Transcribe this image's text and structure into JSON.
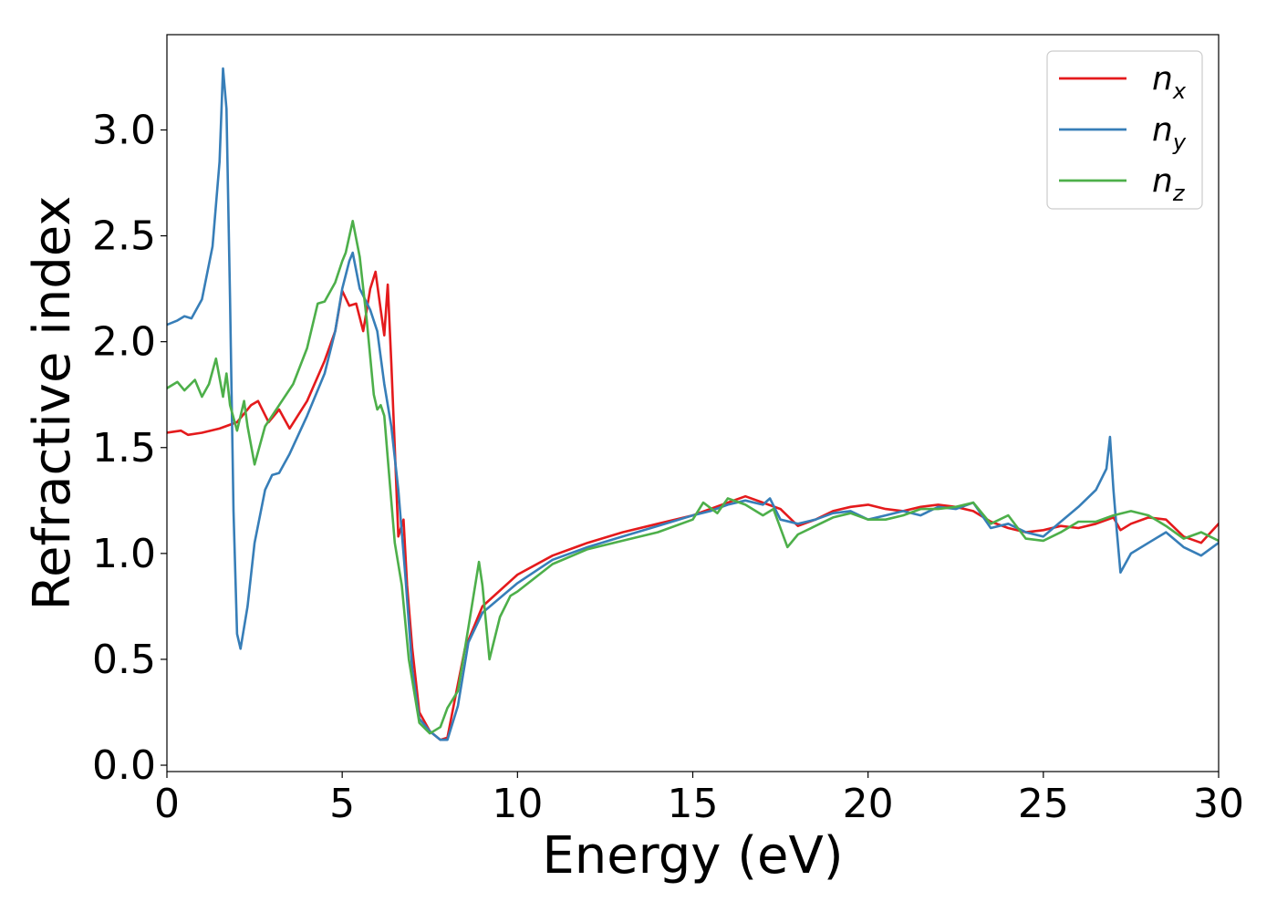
{
  "chart_data": {
    "type": "line",
    "title": "",
    "xlabel": "Energy (eV)",
    "ylabel": "Refractive index",
    "xlim": [
      0,
      30
    ],
    "ylim": [
      -0.03,
      3.45
    ],
    "xticks": [
      0,
      5,
      10,
      15,
      20,
      25,
      30
    ],
    "yticks": [
      0.0,
      0.5,
      1.0,
      1.5,
      2.0,
      2.5,
      3.0
    ],
    "xtick_labels": [
      "0",
      "5",
      "10",
      "15",
      "20",
      "25",
      "30"
    ],
    "ytick_labels": [
      "0.0",
      "0.5",
      "1.0",
      "1.5",
      "2.0",
      "2.5",
      "3.0"
    ],
    "grid": false,
    "legend_position": "top-right",
    "series": [
      {
        "name": "n",
        "subscript": "x",
        "color": "#e41a1c",
        "x": [
          0,
          0.4,
          0.6,
          1,
          1.5,
          2,
          2.4,
          2.6,
          2.9,
          3.2,
          3.5,
          4,
          4.5,
          4.8,
          5.0,
          5.2,
          5.4,
          5.6,
          5.8,
          5.95,
          6.1,
          6.2,
          6.3,
          6.4,
          6.5,
          6.6,
          6.75,
          6.85,
          7.0,
          7.2,
          7.5,
          7.8,
          8.0,
          8.2,
          8.5,
          9,
          10,
          11,
          12,
          13,
          14,
          15,
          15.5,
          16,
          16.5,
          17,
          17.5,
          18,
          18.5,
          19,
          19.5,
          20,
          20.5,
          21,
          21.5,
          22,
          22.5,
          23,
          23.5,
          24,
          24.5,
          25,
          25.5,
          26,
          26.5,
          27,
          27.2,
          27.5,
          28,
          28.5,
          29,
          29.5,
          30
        ],
        "y": [
          1.57,
          1.58,
          1.56,
          1.57,
          1.59,
          1.62,
          1.7,
          1.72,
          1.62,
          1.68,
          1.59,
          1.72,
          1.91,
          2.05,
          2.24,
          2.17,
          2.18,
          2.05,
          2.25,
          2.33,
          2.15,
          2.03,
          2.27,
          1.9,
          1.5,
          1.08,
          1.16,
          0.85,
          0.55,
          0.25,
          0.16,
          0.12,
          0.13,
          0.3,
          0.55,
          0.75,
          0.9,
          0.99,
          1.05,
          1.1,
          1.14,
          1.18,
          1.21,
          1.24,
          1.27,
          1.24,
          1.21,
          1.13,
          1.16,
          1.2,
          1.22,
          1.23,
          1.21,
          1.2,
          1.22,
          1.23,
          1.22,
          1.2,
          1.15,
          1.12,
          1.1,
          1.11,
          1.13,
          1.12,
          1.14,
          1.17,
          1.11,
          1.14,
          1.17,
          1.16,
          1.08,
          1.05,
          1.14
        ]
      },
      {
        "name": "n",
        "subscript": "y",
        "color": "#377eb8",
        "x": [
          0,
          0.3,
          0.5,
          0.7,
          1.0,
          1.3,
          1.5,
          1.6,
          1.7,
          1.8,
          1.9,
          2.0,
          2.1,
          2.3,
          2.5,
          2.8,
          3.0,
          3.2,
          3.5,
          4,
          4.5,
          4.8,
          5.0,
          5.2,
          5.3,
          5.5,
          5.8,
          6.0,
          6.2,
          6.4,
          6.6,
          6.8,
          7.0,
          7.2,
          7.5,
          7.8,
          8.0,
          8.3,
          8.6,
          9,
          10,
          11,
          12,
          13,
          14,
          15,
          15.5,
          16,
          16.5,
          17,
          17.2,
          17.5,
          18,
          18.5,
          19,
          19.5,
          20,
          20.5,
          21,
          21.5,
          22,
          22.5,
          23,
          23.5,
          24,
          24.5,
          25,
          25.5,
          26,
          26.5,
          26.8,
          26.9,
          27,
          27.1,
          27.2,
          27.5,
          28,
          28.5,
          29,
          29.5,
          30
        ],
        "y": [
          2.08,
          2.1,
          2.12,
          2.11,
          2.2,
          2.45,
          2.85,
          3.29,
          3.1,
          2.2,
          1.2,
          0.62,
          0.55,
          0.75,
          1.05,
          1.3,
          1.37,
          1.38,
          1.47,
          1.65,
          1.85,
          2.05,
          2.25,
          2.38,
          2.42,
          2.25,
          2.15,
          2.05,
          1.8,
          1.6,
          1.3,
          0.9,
          0.45,
          0.22,
          0.16,
          0.12,
          0.12,
          0.28,
          0.58,
          0.72,
          0.86,
          0.97,
          1.03,
          1.08,
          1.13,
          1.18,
          1.2,
          1.23,
          1.25,
          1.23,
          1.26,
          1.16,
          1.14,
          1.16,
          1.19,
          1.2,
          1.16,
          1.18,
          1.2,
          1.18,
          1.22,
          1.21,
          1.24,
          1.12,
          1.14,
          1.1,
          1.08,
          1.15,
          1.22,
          1.3,
          1.4,
          1.55,
          1.3,
          1.1,
          0.91,
          1.0,
          1.05,
          1.1,
          1.03,
          0.99,
          1.05
        ]
      },
      {
        "name": "n",
        "subscript": "z",
        "color": "#4daf4a",
        "x": [
          0,
          0.3,
          0.5,
          0.8,
          1.0,
          1.2,
          1.4,
          1.6,
          1.7,
          1.8,
          2.0,
          2.2,
          2.3,
          2.5,
          2.8,
          3.2,
          3.6,
          4,
          4.3,
          4.5,
          4.8,
          5.0,
          5.1,
          5.3,
          5.5,
          5.7,
          5.9,
          6.0,
          6.1,
          6.2,
          6.3,
          6.5,
          6.7,
          6.9,
          7.2,
          7.5,
          7.8,
          8.0,
          8.3,
          8.6,
          8.9,
          9.0,
          9.2,
          9.5,
          9.8,
          10,
          11,
          12,
          13,
          14,
          15,
          15.3,
          15.7,
          16,
          16.5,
          17,
          17.3,
          17.7,
          18,
          18.5,
          19,
          19.5,
          20,
          20.5,
          21,
          21.5,
          22,
          22.5,
          23,
          23.5,
          24,
          24.5,
          25,
          25.5,
          26,
          26.5,
          27,
          27.5,
          28,
          28.5,
          29,
          29.5,
          30
        ],
        "y": [
          1.78,
          1.81,
          1.77,
          1.82,
          1.74,
          1.8,
          1.92,
          1.74,
          1.85,
          1.7,
          1.58,
          1.72,
          1.6,
          1.42,
          1.6,
          1.7,
          1.8,
          1.97,
          2.18,
          2.19,
          2.28,
          2.38,
          2.42,
          2.57,
          2.4,
          2.1,
          1.75,
          1.68,
          1.7,
          1.65,
          1.45,
          1.05,
          0.85,
          0.5,
          0.2,
          0.15,
          0.18,
          0.27,
          0.35,
          0.65,
          0.96,
          0.85,
          0.5,
          0.7,
          0.8,
          0.82,
          0.95,
          1.02,
          1.06,
          1.1,
          1.16,
          1.24,
          1.19,
          1.26,
          1.23,
          1.18,
          1.21,
          1.03,
          1.09,
          1.13,
          1.17,
          1.19,
          1.16,
          1.16,
          1.18,
          1.21,
          1.21,
          1.22,
          1.24,
          1.14,
          1.18,
          1.07,
          1.06,
          1.1,
          1.15,
          1.15,
          1.18,
          1.2,
          1.18,
          1.13,
          1.07,
          1.1,
          1.06
        ]
      }
    ]
  }
}
